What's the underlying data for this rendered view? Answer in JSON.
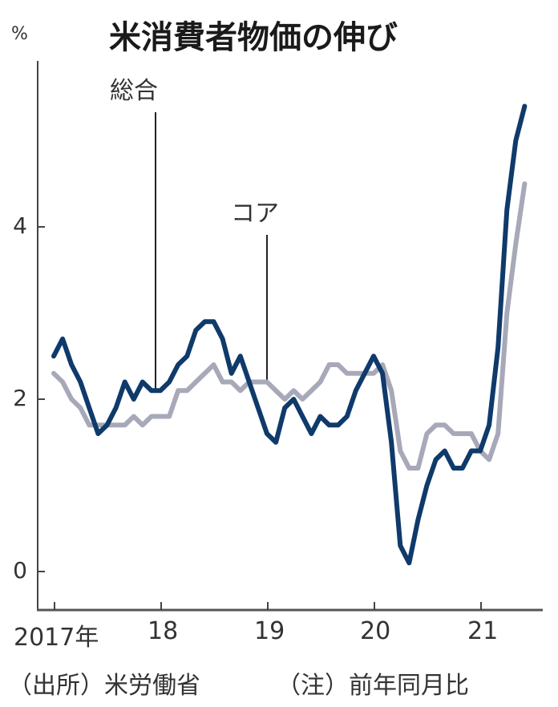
{
  "header": {
    "title": "米消費者物価の伸び",
    "unit": "%"
  },
  "axes": {
    "y_ticks": [
      "0",
      "2",
      "4"
    ],
    "x_ticks": [
      "2017年",
      "18",
      "19",
      "20",
      "21"
    ]
  },
  "labels": {
    "headline": "総合",
    "core": "コア"
  },
  "footer": {
    "source": "（出所）米労働省",
    "note": "（注）前年同月比"
  },
  "colors": {
    "headline": "#0f3a6b",
    "core": "#a7a9b9",
    "axis": "#444444"
  },
  "chart_data": {
    "type": "line",
    "title": "米消費者物価の伸び",
    "xlabel": "",
    "ylabel": "%",
    "ylim": [
      -0.5,
      5.6
    ],
    "grid": false,
    "legend_position": "inline labels with leader lines",
    "x_start": "2017-01",
    "x_end": "2021-06",
    "x_ticks": [
      "2017年",
      "18",
      "19",
      "20",
      "21"
    ],
    "y_ticks": [
      0,
      2,
      4
    ],
    "series": [
      {
        "name": "総合",
        "color": "#0f3a6b",
        "values": [
          2.5,
          2.7,
          2.4,
          2.2,
          1.9,
          1.6,
          1.7,
          1.9,
          2.2,
          2.0,
          2.2,
          2.1,
          2.1,
          2.2,
          2.4,
          2.5,
          2.8,
          2.9,
          2.9,
          2.7,
          2.3,
          2.5,
          2.2,
          1.9,
          1.6,
          1.5,
          1.9,
          2.0,
          1.8,
          1.6,
          1.8,
          1.7,
          1.7,
          1.8,
          2.1,
          2.3,
          2.5,
          2.3,
          1.5,
          0.3,
          0.1,
          0.6,
          1.0,
          1.3,
          1.4,
          1.2,
          1.2,
          1.4,
          1.4,
          1.7,
          2.6,
          4.2,
          5.0,
          5.4
        ]
      },
      {
        "name": "コア",
        "color": "#a7a9b9",
        "values": [
          2.3,
          2.2,
          2.0,
          1.9,
          1.7,
          1.7,
          1.7,
          1.7,
          1.7,
          1.8,
          1.7,
          1.8,
          1.8,
          1.8,
          2.1,
          2.1,
          2.2,
          2.3,
          2.4,
          2.2,
          2.2,
          2.1,
          2.2,
          2.2,
          2.2,
          2.1,
          2.0,
          2.1,
          2.0,
          2.1,
          2.2,
          2.4,
          2.4,
          2.3,
          2.3,
          2.3,
          2.3,
          2.4,
          2.1,
          1.4,
          1.2,
          1.2,
          1.6,
          1.7,
          1.7,
          1.6,
          1.6,
          1.6,
          1.4,
          1.3,
          1.6,
          3.0,
          3.8,
          4.5
        ]
      }
    ],
    "annotations": [
      "（出所）米労働省",
      "（注）前年同月比"
    ]
  }
}
